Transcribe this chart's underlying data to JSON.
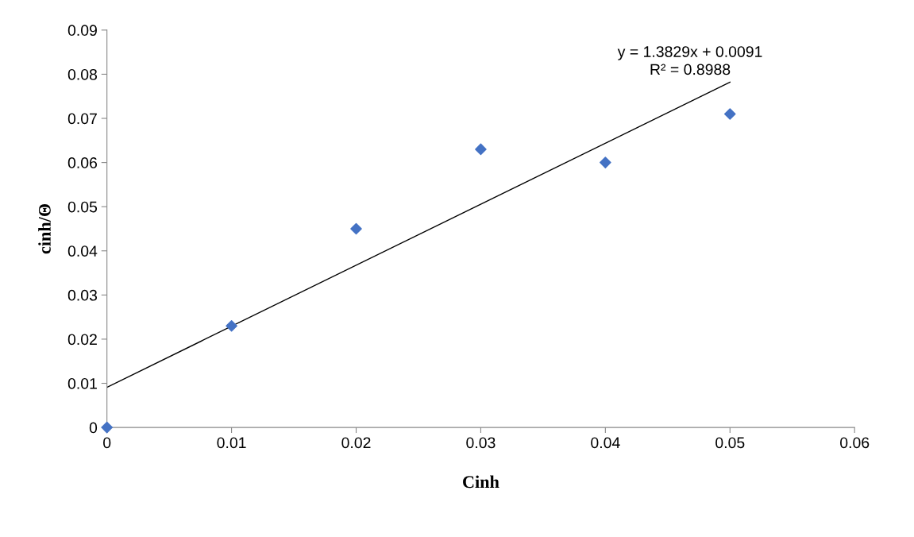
{
  "chart_data": {
    "type": "scatter",
    "xlabel": "Cinh",
    "ylabel": "cinh/Θ",
    "x": [
      0,
      0.01,
      0.02,
      0.03,
      0.04,
      0.05
    ],
    "series": [
      {
        "color": "#4472c4",
        "marker": "diamond",
        "values": [
          0,
          0.023,
          0.045,
          0.063,
          0.06,
          0.071
        ]
      },
      {
        "type": "line",
        "color": "#000000",
        "marker": "none",
        "x": [
          0,
          0.05
        ],
        "values": [
          0.0091,
          0.0782
        ]
      }
    ],
    "annotations": [
      "y = 1.3829x + 0.0091\nR² = 0.8988"
    ],
    "xlim": [
      0,
      0.06
    ],
    "xticks": [
      0,
      0.01,
      0.02,
      0.03,
      0.04,
      0.05,
      0.06
    ],
    "ylim": [
      0,
      0.09
    ],
    "yticks": [
      0,
      0.01,
      0.02,
      0.03,
      0.04,
      0.05,
      0.06,
      0.07,
      0.08,
      0.09
    ],
    "grid": false,
    "legend": false
  }
}
